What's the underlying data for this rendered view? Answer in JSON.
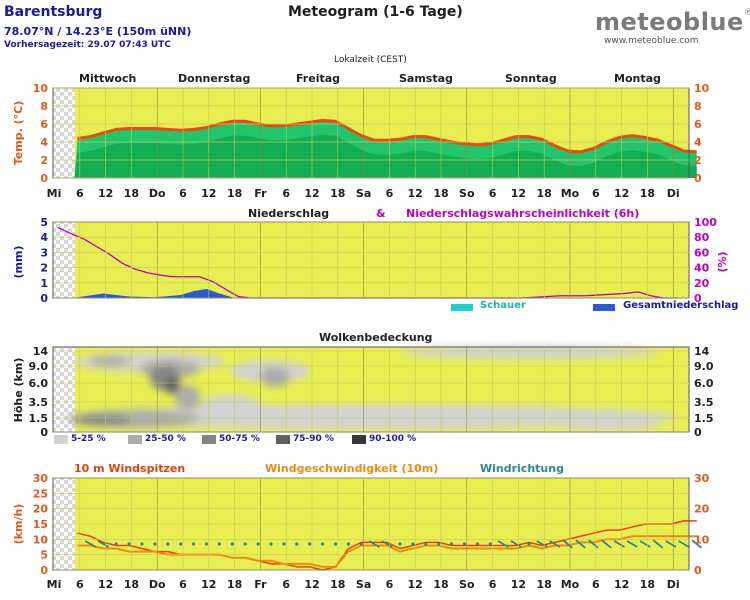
{
  "header": {
    "location": "Barentsburg",
    "coords": "78.07°N / 14.23°E (150m üNN)",
    "forecast_time": "Vorhersagezeit: 29.07 07:43 UTC",
    "title": "Meteogram (1-6 Tage)",
    "brand": "meteoblue",
    "brand_mark": "®",
    "brand_url": "www.meteoblue.com",
    "timezone": "Lokalzeit (CEST)"
  },
  "days": [
    "Mittwoch",
    "Donnerstag",
    "Freitag",
    "Samstag",
    "Sonntag",
    "Montag"
  ],
  "x_ticks": [
    "Mi",
    "6",
    "12",
    "18",
    "Do",
    "6",
    "12",
    "18",
    "Fr",
    "6",
    "12",
    "18",
    "Sa",
    "6",
    "12",
    "18",
    "So",
    "6",
    "12",
    "18",
    "Mo",
    "6",
    "12",
    "18",
    "Di"
  ],
  "colors": {
    "plot_bg": "#e8ee52",
    "temp_fill_light": "#22c56a",
    "temp_fill_dark": "#10a64e",
    "temp_line": "#e84b12",
    "axis_orange": "#e05a1a",
    "axis_blue": "#1a1aa0",
    "prob_magenta": "#c000c0",
    "precip_blue": "#2a5ad8",
    "shower_cyan": "#20d0d0",
    "wind_orange": "#ee8a10",
    "gust_red": "#e8400c",
    "wind_dir_teal": "#2a8a8a"
  },
  "chart_data": [
    {
      "type": "area",
      "name": "temperature",
      "ylabel": "Temp. (°C)",
      "ylim": [
        0,
        10
      ],
      "y_ticks": [
        "0",
        "2",
        "4",
        "6",
        "8",
        "10"
      ],
      "x_hours": [
        0,
        3,
        6,
        9,
        12,
        15,
        18,
        21,
        24,
        27,
        30,
        33,
        36,
        39,
        42,
        45,
        48,
        51,
        54,
        57,
        60,
        63,
        66,
        69,
        72,
        75,
        78,
        81,
        84,
        87,
        90,
        93,
        96,
        99,
        102,
        105,
        108,
        111,
        114,
        117,
        120,
        123,
        126,
        129,
        132,
        135,
        138,
        141,
        144
      ],
      "values": [
        4.4,
        4.6,
        5.0,
        5.4,
        5.5,
        5.5,
        5.5,
        5.4,
        5.3,
        5.4,
        5.6,
        6.0,
        6.3,
        6.3,
        6.0,
        5.8,
        5.8,
        6.0,
        6.2,
        6.4,
        6.3,
        5.5,
        4.7,
        4.2,
        4.2,
        4.3,
        4.6,
        4.6,
        4.3,
        4.0,
        3.8,
        3.7,
        3.8,
        4.2,
        4.6,
        4.6,
        4.3,
        3.6,
        3.0,
        2.9,
        3.3,
        4.0,
        4.5,
        4.7,
        4.5,
        4.2,
        3.6,
        3.0,
        2.9
      ]
    },
    {
      "type": "line",
      "name": "precipitation",
      "title": "Niederschlag",
      "title_joiner": "&",
      "title_right": "Niederschlagswahrscheinlichkeit (6h)",
      "ylabel": "(mm)",
      "ylabel_right": "(%)",
      "ylim": [
        0,
        5
      ],
      "y_ticks": [
        "0",
        "1",
        "2",
        "3",
        "4",
        "5"
      ],
      "y2lim": [
        0,
        100
      ],
      "y2_ticks": [
        "0",
        "20",
        "40",
        "60",
        "80",
        "100"
      ],
      "probability_x": [
        0,
        3,
        6,
        9,
        12,
        15,
        18,
        21,
        24,
        27,
        30,
        33,
        36,
        39,
        42,
        45,
        48,
        51,
        54,
        57,
        60,
        63,
        66,
        69,
        72,
        75,
        78,
        81,
        84,
        87,
        90,
        93,
        96,
        99,
        102,
        105,
        108,
        111,
        114,
        117,
        120,
        123,
        126,
        129,
        132,
        135,
        138,
        141,
        144
      ],
      "probability_values": [
        93,
        85,
        78,
        68,
        58,
        46,
        38,
        33,
        30,
        28,
        28,
        28,
        22,
        12,
        2,
        0,
        0,
        0,
        0,
        0,
        0,
        0,
        0,
        0,
        0,
        0,
        0,
        0,
        0,
        0,
        0,
        0,
        0,
        0,
        0,
        0,
        0,
        1,
        2,
        3,
        3,
        3,
        4,
        5,
        6,
        8,
        3,
        0,
        0
      ],
      "precip_x": [
        0,
        6,
        12,
        18,
        24,
        27,
        30,
        33,
        36
      ],
      "precip_values": [
        0.05,
        0.3,
        0.1,
        0.05,
        0.2,
        0.45,
        0.6,
        0.3,
        0.05
      ],
      "legend": [
        "Schauer",
        "Gesamtniederschlag"
      ]
    },
    {
      "type": "heatmap",
      "name": "cloud_cover",
      "title": "Wolkenbedeckung",
      "ylabel": "Höhe (km)",
      "y_ticks": [
        "0",
        "1.5",
        "3.5",
        "6.0",
        "9.0",
        "14"
      ],
      "legend": [
        "5-25 %",
        "25-50 %",
        "50-75 %",
        "75-90 %",
        "90-100 %"
      ],
      "legend_colors": [
        "#d2d2d2",
        "#ababab",
        "#858585",
        "#5e5e5e",
        "#363636"
      ]
    },
    {
      "type": "line",
      "name": "wind",
      "title_gust": "10 m Windspitzen",
      "title_speed": "Windgeschwindigkeit (10m)",
      "title_dir": "Windrichtung",
      "ylabel": "(km/h)",
      "ylim": [
        0,
        30
      ],
      "y_ticks": [
        "0",
        "5",
        "10",
        "15",
        "20",
        "25",
        "30"
      ],
      "y2_ticks": [
        "0",
        "10",
        "20",
        "30"
      ],
      "x_hours": [
        0,
        3,
        6,
        9,
        12,
        15,
        18,
        21,
        24,
        27,
        30,
        33,
        36,
        39,
        42,
        45,
        48,
        51,
        54,
        57,
        60,
        63,
        66,
        69,
        72,
        75,
        78,
        81,
        84,
        87,
        90,
        93,
        96,
        99,
        102,
        105,
        108,
        111,
        114,
        117,
        120,
        123,
        126,
        129,
        132,
        135,
        138,
        141,
        144
      ],
      "gust_values": [
        12,
        11,
        9,
        8,
        8,
        7,
        6,
        6,
        5,
        5,
        5,
        5,
        4,
        4,
        3,
        2,
        2,
        1,
        1,
        0,
        1,
        7,
        9,
        9,
        9,
        7,
        8,
        9,
        9,
        8,
        8,
        8,
        8,
        8,
        8,
        9,
        8,
        9,
        10,
        11,
        12,
        13,
        13,
        14,
        15,
        15,
        15,
        16,
        16
      ],
      "speed_values": [
        8,
        8,
        7,
        7,
        6,
        6,
        6,
        5,
        5,
        5,
        5,
        5,
        4,
        4,
        3,
        3,
        2,
        2,
        2,
        1,
        1,
        6,
        8,
        8,
        8,
        6,
        7,
        8,
        8,
        7,
        7,
        7,
        7,
        7,
        7,
        8,
        7,
        8,
        8,
        9,
        9,
        10,
        10,
        11,
        11,
        11,
        11,
        11,
        11
      ],
      "direction_x": [
        3,
        6,
        9,
        12,
        15,
        18,
        21,
        24,
        27,
        30,
        33,
        36,
        39,
        42,
        45,
        48,
        51,
        54,
        57,
        60,
        63,
        66,
        69,
        72,
        75,
        78,
        81,
        84,
        87,
        90,
        93,
        96,
        99,
        102,
        105,
        108,
        111,
        114,
        117,
        120,
        123,
        126,
        129,
        132,
        135,
        138,
        141,
        144
      ],
      "direction_deg": [
        300,
        300,
        0,
        0,
        0,
        0,
        0,
        0,
        0,
        0,
        0,
        0,
        0,
        0,
        0,
        0,
        0,
        0,
        0,
        0,
        0,
        0,
        300,
        300,
        0,
        0,
        0,
        0,
        0,
        0,
        0,
        0,
        300,
        300,
        0,
        300,
        300,
        310,
        310,
        310,
        310,
        300,
        300,
        300,
        310,
        300,
        300,
        310
      ]
    }
  ]
}
